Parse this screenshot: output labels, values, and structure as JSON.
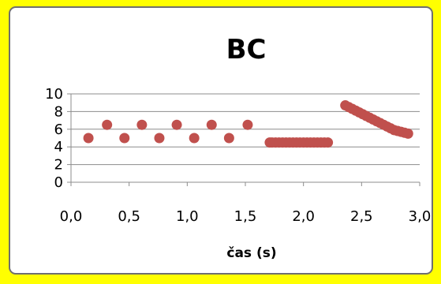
{
  "chart_data": {
    "type": "scatter",
    "title": "BC",
    "xlabel": "čas (s)",
    "ylabel": "",
    "xlim": [
      0.0,
      3.0
    ],
    "ylim": [
      0,
      10
    ],
    "x_ticks": [
      "0,0",
      "0,5",
      "1,0",
      "1,5",
      "2,0",
      "2,5",
      "3,0"
    ],
    "y_ticks": [
      "0",
      "2",
      "4",
      "6",
      "8",
      "10"
    ],
    "grid": "horizontal",
    "legend": "none",
    "marker_color": "#c0504d",
    "series": [
      {
        "points": [
          [
            0.15,
            5.0
          ],
          [
            0.31,
            6.5
          ],
          [
            0.46,
            5.0
          ],
          [
            0.61,
            6.5
          ],
          [
            0.76,
            5.0
          ],
          [
            0.91,
            6.5
          ],
          [
            1.06,
            5.0
          ],
          [
            1.21,
            6.5
          ],
          [
            1.36,
            5.0
          ],
          [
            1.52,
            6.5
          ],
          [
            1.71,
            4.5
          ],
          [
            1.73,
            4.5
          ],
          [
            1.76,
            4.5
          ],
          [
            1.79,
            4.5
          ],
          [
            1.82,
            4.5
          ],
          [
            1.85,
            4.5
          ],
          [
            1.88,
            4.5
          ],
          [
            1.91,
            4.5
          ],
          [
            1.94,
            4.5
          ],
          [
            1.97,
            4.5
          ],
          [
            2.0,
            4.5
          ],
          [
            2.03,
            4.5
          ],
          [
            2.06,
            4.5
          ],
          [
            2.09,
            4.5
          ],
          [
            2.12,
            4.5
          ],
          [
            2.15,
            4.5
          ],
          [
            2.18,
            4.5
          ],
          [
            2.21,
            4.5
          ],
          [
            2.36,
            8.7
          ],
          [
            2.39,
            8.5
          ],
          [
            2.42,
            8.3
          ],
          [
            2.45,
            8.1
          ],
          [
            2.48,
            7.9
          ],
          [
            2.51,
            7.7
          ],
          [
            2.54,
            7.5
          ],
          [
            2.57,
            7.3
          ],
          [
            2.6,
            7.1
          ],
          [
            2.63,
            6.9
          ],
          [
            2.66,
            6.7
          ],
          [
            2.69,
            6.5
          ],
          [
            2.72,
            6.3
          ],
          [
            2.75,
            6.1
          ],
          [
            2.78,
            5.9
          ],
          [
            2.81,
            5.8
          ],
          [
            2.84,
            5.7
          ],
          [
            2.87,
            5.6
          ],
          [
            2.9,
            5.5
          ]
        ]
      }
    ]
  }
}
